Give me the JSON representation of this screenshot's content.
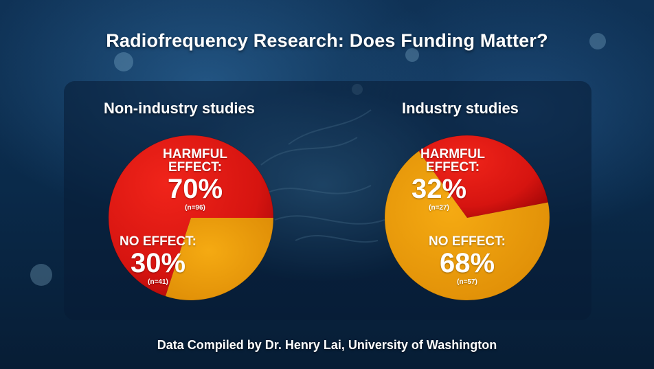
{
  "title": "Radiofrequency Research: Does Funding Matter?",
  "footer": "Data Compiled by Dr. Henry Lai, University of Washington",
  "colors": {
    "harmful": "#e51b0e",
    "harmful_dark": "#b80c0c",
    "no_effect": "#f0a00a",
    "no_effect_dark": "#d88806"
  },
  "chart_data": [
    {
      "type": "pie",
      "title": "Non-industry studies",
      "slices": [
        {
          "label_line1": "HARMFUL",
          "label_line2": "EFFECT:",
          "value": 70,
          "value_label": "70%",
          "n_label": "(n=96)",
          "color": "#e51b0e"
        },
        {
          "label_line1": "NO EFFECT:",
          "label_line2": "",
          "value": 30,
          "value_label": "30%",
          "n_label": "(n=41)",
          "color": "#f0a00a"
        }
      ]
    },
    {
      "type": "pie",
      "title": "Industry studies",
      "slices": [
        {
          "label_line1": "HARMFUL",
          "label_line2": "EFFECT:",
          "value": 32,
          "value_label": "32%",
          "n_label": "(n=27)",
          "color": "#e51b0e"
        },
        {
          "label_line1": "NO EFFECT:",
          "label_line2": "",
          "value": 68,
          "value_label": "68%",
          "n_label": "(n=57)",
          "color": "#f0a00a"
        }
      ]
    }
  ]
}
